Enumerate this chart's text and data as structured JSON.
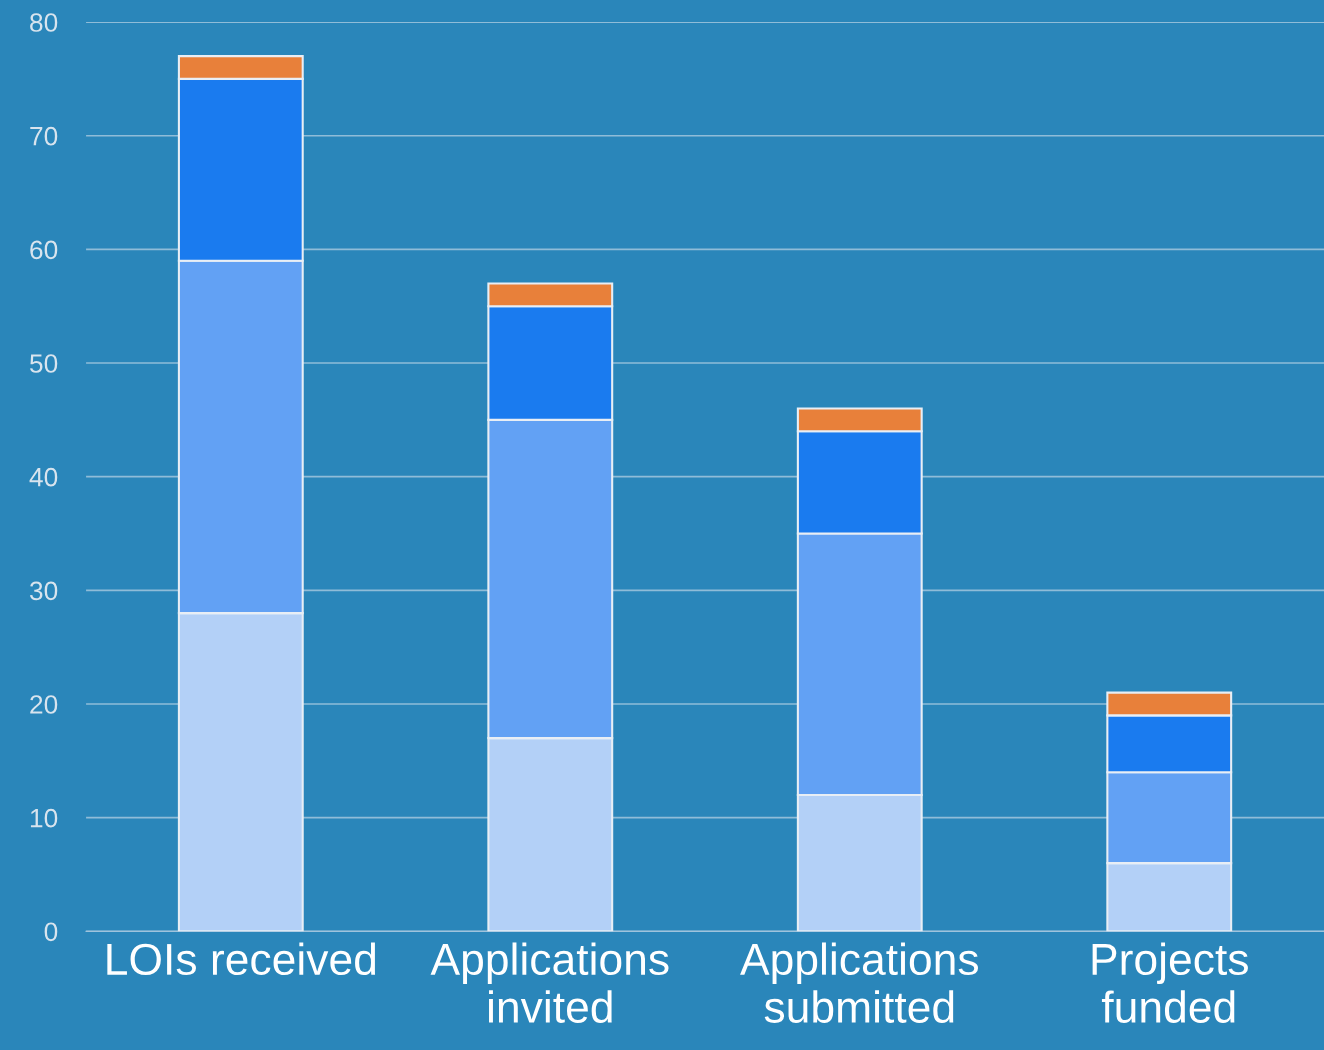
{
  "chart_data": {
    "type": "bar",
    "stacked": true,
    "categories": [
      "LOIs received",
      "Applications\ninvited",
      "Applications\nsubmitted",
      "Projects\nfunded"
    ],
    "series": [
      {
        "color": "#b3d0f7",
        "values": [
          28,
          17,
          12,
          6
        ]
      },
      {
        "color": "#62a1f4",
        "values": [
          31,
          28,
          23,
          8
        ]
      },
      {
        "color": "#1a7bef",
        "values": [
          16,
          10,
          9,
          5
        ]
      },
      {
        "color": "#e8803a",
        "values": [
          2,
          2,
          2,
          2
        ]
      }
    ],
    "ylim": [
      0,
      80
    ],
    "yticks": [
      0,
      10,
      20,
      30,
      40,
      50,
      60,
      70,
      80
    ],
    "grid": "y",
    "legend": false
  }
}
